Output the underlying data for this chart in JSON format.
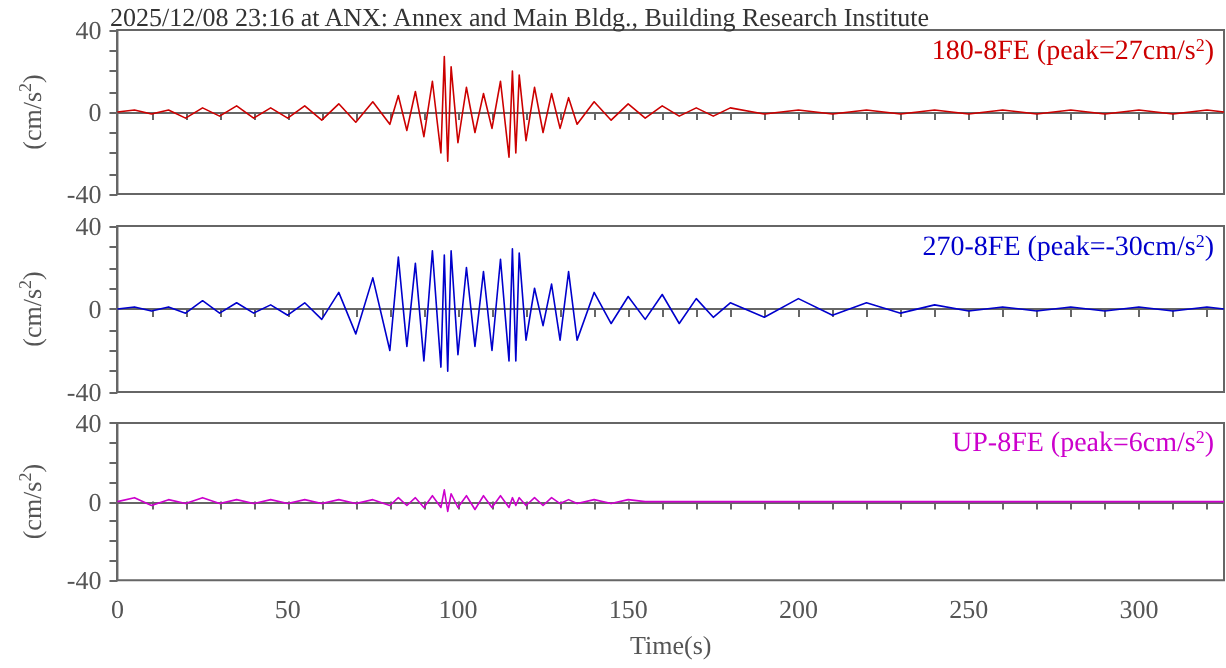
{
  "chart_data": [
    {
      "type": "line",
      "title": "2025/12/08 23:16 at ANX: Annex and Main Bldg., Building Research Institute",
      "ylabel": "(cm/s$^{2}$)",
      "tick_labels": "y",
      "x": [
        0,
        5,
        10,
        15,
        20,
        25,
        30,
        35,
        40,
        45,
        50,
        55,
        60,
        65,
        70,
        75,
        80,
        82.5,
        85,
        87.5,
        90,
        92.5,
        95,
        96,
        97,
        98,
        100,
        102.5,
        105,
        107.5,
        110,
        112.5,
        115,
        116,
        117,
        118,
        120,
        122.5,
        125,
        127.5,
        130,
        132.5,
        135,
        140,
        145,
        150,
        155,
        160,
        165,
        170,
        175,
        180,
        190,
        200,
        210,
        220,
        230,
        240,
        250,
        260,
        270,
        280,
        290,
        300,
        310,
        320,
        325
      ],
      "series": [
        {
          "name": "180-8FE (peak=27cm/s$^{2}$)",
          "color": "#cc0000",
          "values": [
            0,
            1,
            -1,
            1,
            -3,
            2,
            -2,
            3,
            -3,
            2,
            -3,
            3,
            -4,
            4,
            -5,
            5,
            -6,
            8,
            -9,
            10,
            -12,
            15,
            -20,
            27,
            -24,
            22,
            -15,
            12,
            -10,
            9,
            -8,
            15,
            -22,
            20,
            -20,
            18,
            -14,
            12,
            -10,
            9,
            -8,
            7,
            -6,
            5,
            -4,
            4,
            -3,
            3,
            -2,
            2,
            -2,
            2,
            -1,
            1,
            -1,
            1,
            -1,
            1,
            -1,
            1,
            -1,
            1,
            -1,
            1,
            -1,
            1,
            0
          ]
        }
      ],
      "xlim": [
        0,
        325
      ],
      "xticks": [
        0,
        {
          "value": 10,
          "label": null
        },
        {
          "value": 20,
          "label": null
        },
        {
          "value": 30,
          "label": null
        },
        {
          "value": 40,
          "label": null
        },
        50,
        {
          "value": 60,
          "label": null
        },
        {
          "value": 70,
          "label": null
        },
        {
          "value": 80,
          "label": null
        },
        {
          "value": 90,
          "label": null
        },
        100,
        {
          "value": 110,
          "label": null
        },
        {
          "value": 120,
          "label": null
        },
        {
          "value": 130,
          "label": null
        },
        {
          "value": 140,
          "label": null
        },
        150,
        {
          "value": 160,
          "label": null
        },
        {
          "value": 170,
          "label": null
        },
        {
          "value": 180,
          "label": null
        },
        {
          "value": 190,
          "label": null
        },
        200,
        {
          "value": 210,
          "label": null
        },
        {
          "value": 220,
          "label": null
        },
        {
          "value": 230,
          "label": null
        },
        {
          "value": 240,
          "label": null
        },
        250,
        {
          "value": 260,
          "label": null
        },
        {
          "value": 270,
          "label": null
        },
        {
          "value": 280,
          "label": null
        },
        {
          "value": 290,
          "label": null
        },
        300,
        {
          "value": 310,
          "label": null
        },
        {
          "value": 320,
          "label": null
        }
      ],
      "ylim": [
        -40,
        40
      ],
      "yticks": [
        -40,
        {
          "value": -30,
          "label": null
        },
        {
          "value": -20,
          "label": null
        },
        {
          "value": -10,
          "label": null
        },
        0,
        {
          "value": 10,
          "label": null
        },
        {
          "value": 20,
          "label": null
        },
        {
          "value": 30,
          "label": null
        },
        40
      ]
    },
    {
      "type": "line",
      "ylabel": "(cm/s$^{2}$)",
      "tick_labels": "y",
      "x": [
        0,
        5,
        10,
        15,
        20,
        25,
        30,
        35,
        40,
        45,
        50,
        55,
        60,
        65,
        70,
        75,
        80,
        82.5,
        85,
        87.5,
        90,
        92.5,
        95,
        96,
        97,
        98,
        100,
        102.5,
        105,
        107.5,
        110,
        112.5,
        115,
        116,
        117,
        118,
        120,
        122.5,
        125,
        127.5,
        130,
        132.5,
        135,
        140,
        145,
        150,
        155,
        160,
        165,
        170,
        175,
        180,
        190,
        200,
        210,
        220,
        230,
        240,
        250,
        260,
        270,
        280,
        290,
        300,
        310,
        320,
        325
      ],
      "series": [
        {
          "name": "270-8FE (peak=-30cm/s$^{2}$)",
          "color": "#0000cc",
          "values": [
            0,
            1,
            -1,
            1,
            -2,
            4,
            -2,
            3,
            -2,
            2,
            -3,
            3,
            -5,
            8,
            -12,
            15,
            -20,
            25,
            -18,
            22,
            -25,
            28,
            -28,
            26,
            -30,
            28,
            -22,
            20,
            -18,
            18,
            -20,
            24,
            -25,
            29,
            -25,
            27,
            -15,
            10,
            -8,
            12,
            -15,
            18,
            -15,
            8,
            -7,
            6,
            -5,
            7,
            -7,
            5,
            -4,
            3,
            -4,
            5,
            -3,
            3,
            -2,
            2,
            -1,
            1,
            -1,
            1,
            -1,
            1,
            -1,
            1,
            0
          ]
        }
      ],
      "xlim": [
        0,
        325
      ],
      "xticks": [
        0,
        {
          "value": 10,
          "label": null
        },
        {
          "value": 20,
          "label": null
        },
        {
          "value": 30,
          "label": null
        },
        {
          "value": 40,
          "label": null
        },
        50,
        {
          "value": 60,
          "label": null
        },
        {
          "value": 70,
          "label": null
        },
        {
          "value": 80,
          "label": null
        },
        {
          "value": 90,
          "label": null
        },
        100,
        {
          "value": 110,
          "label": null
        },
        {
          "value": 120,
          "label": null
        },
        {
          "value": 130,
          "label": null
        },
        {
          "value": 140,
          "label": null
        },
        150,
        {
          "value": 160,
          "label": null
        },
        {
          "value": 170,
          "label": null
        },
        {
          "value": 180,
          "label": null
        },
        {
          "value": 190,
          "label": null
        },
        200,
        {
          "value": 210,
          "label": null
        },
        {
          "value": 220,
          "label": null
        },
        {
          "value": 230,
          "label": null
        },
        {
          "value": 240,
          "label": null
        },
        250,
        {
          "value": 260,
          "label": null
        },
        {
          "value": 270,
          "label": null
        },
        {
          "value": 280,
          "label": null
        },
        {
          "value": 290,
          "label": null
        },
        300,
        {
          "value": 310,
          "label": null
        },
        {
          "value": 320,
          "label": null
        }
      ],
      "ylim": [
        -40,
        40
      ],
      "yticks": [
        -40,
        {
          "value": -30,
          "label": null
        },
        {
          "value": -20,
          "label": null
        },
        {
          "value": -10,
          "label": null
        },
        0,
        {
          "value": 10,
          "label": null
        },
        {
          "value": 20,
          "label": null
        },
        {
          "value": 30,
          "label": null
        },
        40
      ]
    },
    {
      "type": "line",
      "xlabel": "Time(s)",
      "ylabel": "(cm/s$^{2}$)",
      "x": [
        0,
        5,
        10,
        15,
        20,
        25,
        30,
        35,
        40,
        45,
        50,
        55,
        60,
        65,
        70,
        75,
        80,
        82.5,
        85,
        87.5,
        90,
        92.5,
        95,
        96,
        97,
        98,
        100,
        102.5,
        105,
        107.5,
        110,
        112.5,
        115,
        116,
        117,
        118,
        120,
        122.5,
        125,
        127.5,
        130,
        132.5,
        135,
        140,
        145,
        150,
        155,
        160,
        165,
        170,
        175,
        180,
        190,
        200,
        210,
        220,
        230,
        240,
        250,
        260,
        270,
        280,
        290,
        300,
        310,
        320,
        325
      ],
      "series": [
        {
          "name": "UP-8FE (peak=6cm/s$^{2}$)",
          "color": "#cc00cc",
          "values": [
            0,
            2,
            -2,
            1,
            -1,
            2,
            -1,
            1,
            -1,
            1,
            -1,
            1,
            -1,
            1,
            -1,
            1,
            -2,
            2,
            -2,
            2,
            -3,
            3,
            -3,
            6,
            -5,
            4,
            -3,
            3,
            -4,
            3,
            -3,
            3,
            -3,
            2,
            -2,
            2,
            -2,
            2,
            -2,
            2,
            -1,
            1,
            -1,
            1,
            -1,
            1,
            0,
            0,
            0,
            0,
            0,
            0,
            0,
            0,
            0,
            0,
            0,
            0,
            0,
            0,
            0,
            0,
            0,
            0,
            0,
            0,
            0
          ]
        }
      ],
      "xlim": [
        0,
        325
      ],
      "xticks": [
        0,
        {
          "value": 10,
          "label": null
        },
        {
          "value": 20,
          "label": null
        },
        {
          "value": 30,
          "label": null
        },
        {
          "value": 40,
          "label": null
        },
        50,
        {
          "value": 60,
          "label": null
        },
        {
          "value": 70,
          "label": null
        },
        {
          "value": 80,
          "label": null
        },
        {
          "value": 90,
          "label": null
        },
        100,
        {
          "value": 110,
          "label": null
        },
        {
          "value": 120,
          "label": null
        },
        {
          "value": 130,
          "label": null
        },
        {
          "value": 140,
          "label": null
        },
        150,
        {
          "value": 160,
          "label": null
        },
        {
          "value": 170,
          "label": null
        },
        {
          "value": 180,
          "label": null
        },
        {
          "value": 190,
          "label": null
        },
        200,
        {
          "value": 210,
          "label": null
        },
        {
          "value": 220,
          "label": null
        },
        {
          "value": 230,
          "label": null
        },
        {
          "value": 240,
          "label": null
        },
        250,
        {
          "value": 260,
          "label": null
        },
        {
          "value": 270,
          "label": null
        },
        {
          "value": 280,
          "label": null
        },
        {
          "value": 290,
          "label": null
        },
        300,
        {
          "value": 310,
          "label": null
        },
        {
          "value": 320,
          "label": null
        }
      ],
      "ylim": [
        -40,
        40
      ],
      "yticks": [
        -40,
        {
          "value": -30,
          "label": null
        },
        {
          "value": -20,
          "label": null
        },
        {
          "value": -10,
          "label": null
        },
        0,
        {
          "value": 10,
          "label": null
        },
        {
          "value": 20,
          "label": null
        },
        {
          "value": 30,
          "label": null
        },
        40
      ]
    }
  ]
}
